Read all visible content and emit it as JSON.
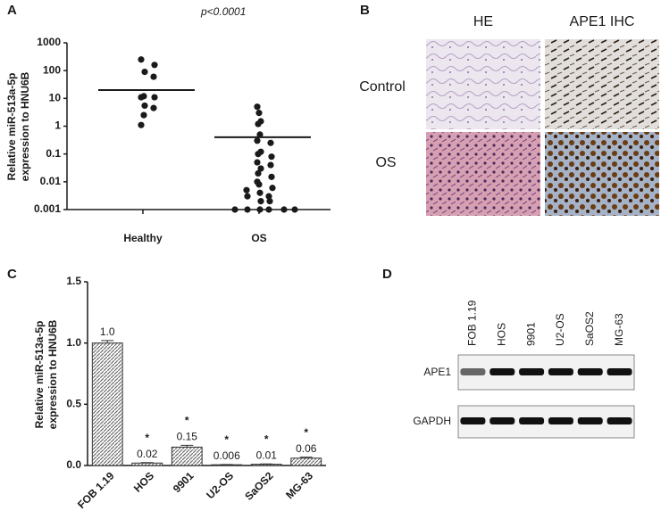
{
  "chart_data": [
    {
      "type": "scatter",
      "panel": "A",
      "annotation": "p<0.0001",
      "ylabel": [
        "Relative miR-513a-5p",
        "expression to HNU6B"
      ],
      "categories": [
        "Healthy",
        "OS"
      ],
      "values": [
        [
          250,
          160,
          90,
          60,
          12,
          11,
          11,
          5.5,
          4.5,
          2.5,
          1.1
        ],
        [
          5,
          3,
          1.5,
          1.2,
          0.5,
          0.3,
          0.25,
          0.12,
          0.1,
          0.08,
          0.05,
          0.04,
          0.03,
          0.02,
          0.015,
          0.01,
          0.008,
          0.006,
          0.005,
          0.004,
          0.003,
          0.003,
          0.002,
          0.002,
          0.001,
          0.001,
          0.001,
          0.001,
          0.001,
          0.001
        ]
      ],
      "means": [
        20,
        0.4
      ],
      "color": "#1a1a1a",
      "yscale": "log",
      "ylim": [
        0.001,
        1000
      ],
      "yticks": [
        0.001,
        0.01,
        0.1,
        1,
        10,
        100,
        1000
      ]
    },
    {
      "type": "bar",
      "panel": "C",
      "ylabel": [
        "Relative miR-513a-5p",
        "expression to HNU6B"
      ],
      "categories": [
        "FOB 1.19",
        "HOS",
        "9901",
        "U2-OS",
        "SaOS2",
        "MG-63"
      ],
      "values": [
        1.0,
        0.02,
        0.15,
        0.006,
        0.01,
        0.06
      ],
      "value_labels": [
        "1.0",
        "0.02",
        "0.15",
        "0.006",
        "0.01",
        "0.06"
      ],
      "errors": [
        0.02,
        0.004,
        0.015,
        0.002,
        0.003,
        0.008
      ],
      "significant": [
        false,
        true,
        true,
        true,
        true,
        true
      ],
      "marker": "*",
      "color": "#6f6f6f",
      "ylim": [
        0,
        1.5
      ],
      "yticks": [
        {
          "value": 0,
          "label": "0.0"
        },
        0.5,
        {
          "value": 1,
          "label": "1.0"
        },
        1.5
      ]
    }
  ],
  "panel_b": {
    "panel": "B",
    "columns": [
      "HE",
      "APE1 IHC"
    ],
    "rows": [
      "Control",
      "OS"
    ]
  },
  "panel_d": {
    "panel": "D",
    "lanes": [
      "FOB 1.19",
      "HOS",
      "9901",
      "U2-OS",
      "SaOS2",
      "MG-63"
    ],
    "rows": [
      "APE1",
      "GAPDH"
    ]
  }
}
